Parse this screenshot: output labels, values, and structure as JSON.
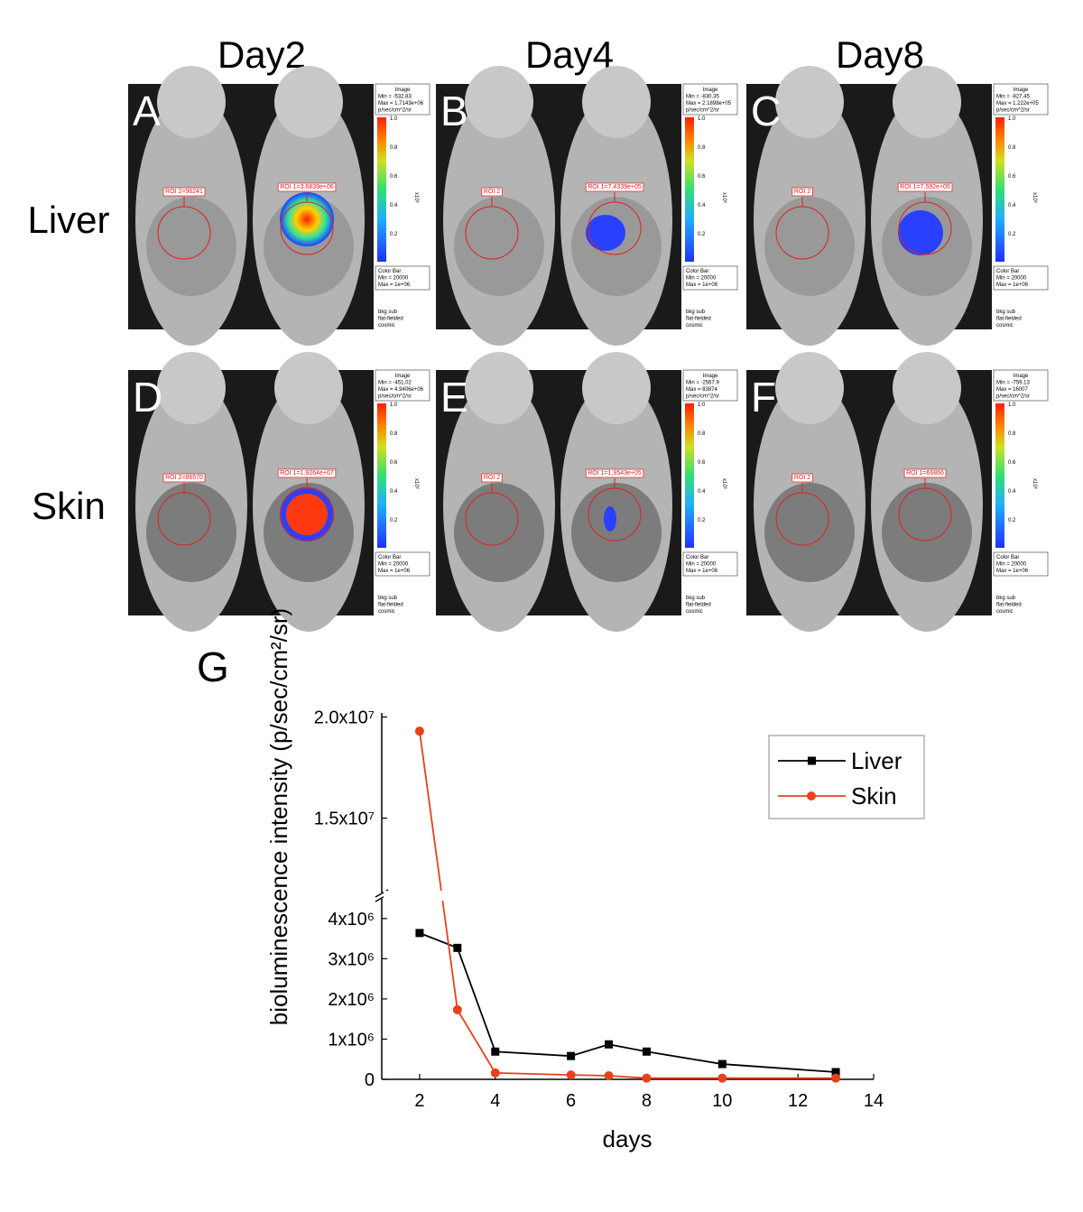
{
  "columns": [
    "Day2",
    "Day4",
    "Day8"
  ],
  "rows": [
    "Liver",
    "Skin"
  ],
  "colorbar": {
    "image": "Image",
    "unit": "p/sec/cm^2/sr",
    "ticks": [
      "1.0",
      "0.8",
      "0.6",
      "0.4",
      "0.2"
    ],
    "exponent": "x10⁶",
    "title": "Color Bar",
    "min": "Min = 20000",
    "max": "Max = 1e+06",
    "notes": [
      "bkg sub",
      "flat-fielded",
      "cosmic"
    ]
  },
  "panels": [
    {
      "letter": "A",
      "min": "Min = -532.83",
      "max": "Max = 1.7143e+06",
      "roi_left": "ROI 2=96241",
      "roi_right": "ROI 1=3.6839e+06"
    },
    {
      "letter": "B",
      "min": "Min = -830.35",
      "max": "Max = 2.1898e+05",
      "roi_left": "ROI 2",
      "roi_right": "ROI 1=7.4339e+05"
    },
    {
      "letter": "C",
      "min": "Min = -827.45",
      "max": "Max = 1.222e+05",
      "roi_left": "ROI 2",
      "roi_right": "ROI 1=7.592e+05"
    },
    {
      "letter": "D",
      "min": "Min = -451.02",
      "max": "Max = 4.9406e+06",
      "roi_left": "ROI 2=86570",
      "roi_right": "ROI 1=1.9264e+07"
    },
    {
      "letter": "E",
      "min": "Min = -2567.9",
      "max": "Max = 83874",
      "roi_left": "ROI 2",
      "roi_right": "ROI 1=1.9543e+05"
    },
    {
      "letter": "F",
      "min": "Min = -759.13",
      "max": "Max = 16007",
      "roi_left": "ROI 2",
      "roi_right": "ROI 1=66866"
    }
  ],
  "chart_data": {
    "type": "line",
    "panel_label": "G",
    "x_label": "days",
    "y_label": "bioluminescence intensity (p/sec/cm²/sr)",
    "xlim": [
      1,
      14
    ],
    "xticks": [
      2,
      4,
      6,
      8,
      10,
      12,
      14
    ],
    "ylim": [
      0,
      20200000
    ],
    "axis_break": [
      4400000,
      11500000
    ],
    "yticks": [
      0,
      {
        "value": 1000000,
        "label": "1x10⁶"
      },
      {
        "value": 2000000,
        "label": "2x10⁶"
      },
      {
        "value": 3000000,
        "label": "3x10⁶"
      },
      {
        "value": 4000000,
        "label": "4x10⁶"
      },
      {
        "value": 15000000,
        "label": "1.5x10⁷"
      },
      {
        "value": 20000000,
        "label": "2.0x10⁷"
      }
    ],
    "legend": "upper right",
    "series": [
      {
        "name": "Liver",
        "color": "#000000",
        "marker": "square",
        "x": [
          2,
          3,
          4,
          6,
          7,
          8,
          10,
          13
        ],
        "values": [
          3640000,
          3270000,
          690000,
          580000,
          870000,
          690000,
          380000,
          180000
        ]
      },
      {
        "name": "Skin",
        "color": "#e8401c",
        "marker": "circle",
        "x": [
          2,
          3,
          4,
          6,
          7,
          8,
          10,
          13
        ],
        "values": [
          19300000,
          1730000,
          160000,
          110000,
          90000,
          30000,
          30000,
          30000
        ]
      }
    ]
  }
}
